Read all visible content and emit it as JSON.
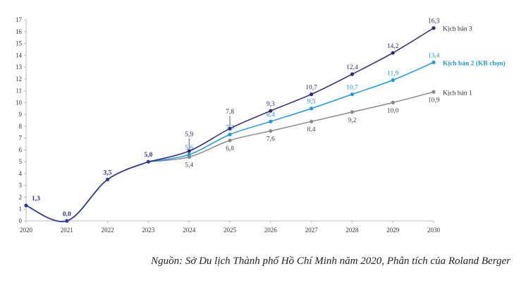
{
  "chart_data": {
    "type": "line",
    "title": "",
    "xlabel": "",
    "ylabel": "",
    "x": [
      2020,
      2021,
      2022,
      2023,
      2024,
      2025,
      2026,
      2027,
      2028,
      2029,
      2030
    ],
    "ylim": [
      0,
      17
    ],
    "yticks": [
      0,
      1,
      2,
      3,
      4,
      5,
      6,
      7,
      8,
      9,
      10,
      11,
      12,
      13,
      14,
      15,
      16,
      17
    ],
    "grid": false,
    "historical": {
      "x": [
        2020,
        2021,
        2022,
        2023
      ],
      "values": [
        1.3,
        0.0,
        3.5,
        5.0
      ],
      "labels": [
        "1,3",
        "0,0",
        "3,5",
        "5,0"
      ],
      "color": "#2b3a8c"
    },
    "series": [
      {
        "name": "Kịch bản 3",
        "x": [
          2023,
          2024,
          2025,
          2026,
          2027,
          2028,
          2029,
          2030
        ],
        "values": [
          5.0,
          5.9,
          7.8,
          9.3,
          10.7,
          12.4,
          14.2,
          16.3
        ],
        "labels": [
          "",
          "5,9",
          "7,8",
          "9,3",
          "10,7",
          "12,4",
          "14,2",
          "16,3"
        ],
        "color": "#2f2a78",
        "label_pos": "above",
        "bold": false
      },
      {
        "name": "Kịch bản 2 (KB chọn)",
        "x": [
          2023,
          2024,
          2025,
          2026,
          2027,
          2028,
          2029,
          2030
        ],
        "values": [
          5.0,
          5.6,
          7.3,
          8.4,
          9.5,
          10.7,
          11.9,
          13.4
        ],
        "labels": [
          "",
          "5,6",
          "7,3",
          "8,4",
          "9,5",
          "10,7",
          "11,9",
          "13,4"
        ],
        "color": "#1e9be0",
        "label_pos": "above",
        "bold": true
      },
      {
        "name": "Kịch bản 1",
        "x": [
          2023,
          2024,
          2025,
          2026,
          2027,
          2028,
          2029,
          2030
        ],
        "values": [
          5.0,
          5.4,
          6.8,
          7.6,
          8.4,
          9.2,
          10.0,
          10.9
        ],
        "labels": [
          "",
          "5,4",
          "6,8",
          "7,6",
          "8,4",
          "9,2",
          "10,0",
          "10,9"
        ],
        "color": "#8a8a8a",
        "label_pos": "below",
        "bold": false
      }
    ],
    "legend": "inline-right"
  },
  "caption": "Nguồn: Sở Du lịch Thành phố Hồ Chí Minh năm 2020, Phân tích của Roland Berger"
}
